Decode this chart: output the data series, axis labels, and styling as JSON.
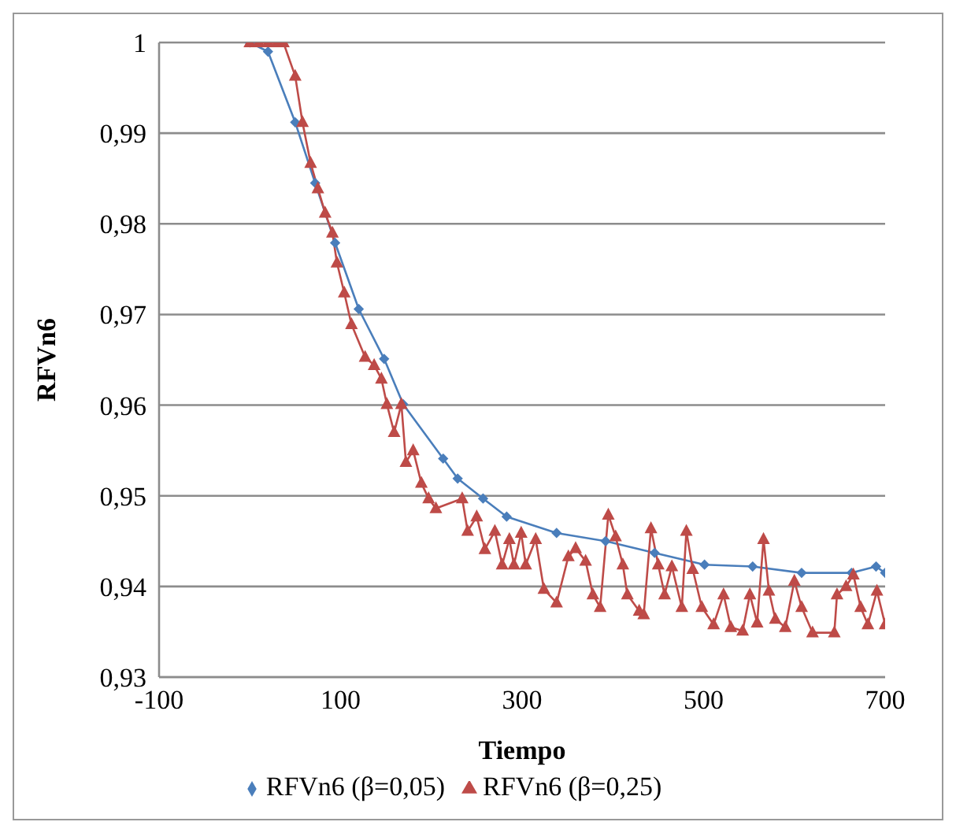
{
  "chart_data": {
    "type": "line",
    "xlabel": "Tiempo",
    "ylabel": "RFVn6",
    "xlim": [
      -100,
      700
    ],
    "xticks": [
      -100,
      100,
      300,
      500,
      700
    ],
    "ylim": [
      0.93,
      1
    ],
    "yticks": [
      {
        "value": 0.93,
        "label": "0,93"
      },
      {
        "value": 0.94,
        "label": "0,94"
      },
      {
        "value": 0.95,
        "label": "0,95"
      },
      {
        "value": 0.96,
        "label": "0,96"
      },
      {
        "value": 0.97,
        "label": "0,97"
      },
      {
        "value": 0.98,
        "label": "0,98"
      },
      {
        "value": 0.99,
        "label": "0,99"
      },
      {
        "value": 1,
        "label": "1"
      }
    ],
    "grid": "y",
    "legend": "bottom",
    "line_style": "solid",
    "series": [
      {
        "name": "RFVn6 (β=0,05)",
        "color": "#4a7ebb",
        "marker": "diamond",
        "x": [
          0,
          20,
          50,
          72,
          94,
          120,
          148,
          169,
          213,
          229,
          257,
          283,
          338,
          392,
          446,
          501,
          554,
          608,
          663,
          690,
          700
        ],
        "values": [
          1,
          0.999,
          0.9912,
          0.9845,
          0.9779,
          0.9706,
          0.9651,
          0.9601,
          0.9541,
          0.9519,
          0.9497,
          0.9477,
          0.9459,
          0.945,
          0.9437,
          0.9424,
          0.9422,
          0.9415,
          0.9415,
          0.9422,
          0.9415
        ]
      },
      {
        "name": "RFVn6 (β=0,25)",
        "color": "#be4b48",
        "marker": "triangle",
        "x": [
          0,
          10,
          20,
          30,
          37,
          50,
          58,
          67,
          75,
          83,
          91,
          96,
          104,
          112,
          127,
          137,
          145,
          151,
          159,
          167,
          172,
          180,
          189,
          197,
          205,
          234,
          240,
          250,
          259,
          270,
          278,
          286,
          291,
          299,
          304,
          315,
          324,
          338,
          351,
          359,
          370,
          378,
          386,
          395,
          403,
          411,
          416,
          429,
          434,
          442,
          450,
          457,
          465,
          476,
          481,
          488,
          498,
          511,
          522,
          530,
          543,
          551,
          559,
          566,
          572,
          579,
          590,
          600,
          608,
          620,
          644,
          647,
          657,
          665,
          673,
          681,
          691,
          700
        ],
        "values": [
          1,
          1,
          1,
          1,
          1,
          0.9963,
          0.9912,
          0.9867,
          0.9839,
          0.9812,
          0.979,
          0.9757,
          0.9724,
          0.9689,
          0.9653,
          0.9644,
          0.9629,
          0.9601,
          0.957,
          0.9601,
          0.9537,
          0.955,
          0.9514,
          0.9497,
          0.9486,
          0.9497,
          0.9461,
          0.9477,
          0.9441,
          0.9461,
          0.9424,
          0.9452,
          0.9424,
          0.9459,
          0.9424,
          0.9452,
          0.9397,
          0.9382,
          0.9433,
          0.9442,
          0.9428,
          0.9391,
          0.9377,
          0.9479,
          0.9455,
          0.9424,
          0.9391,
          0.9373,
          0.9369,
          0.9464,
          0.9424,
          0.9391,
          0.9422,
          0.9377,
          0.9461,
          0.9419,
          0.9377,
          0.9358,
          0.9391,
          0.9355,
          0.9351,
          0.9391,
          0.936,
          0.9452,
          0.9395,
          0.9364,
          0.9355,
          0.9406,
          0.9377,
          0.9349,
          0.9349,
          0.9391,
          0.94,
          0.9413,
          0.9377,
          0.9358,
          0.9395,
          0.9358
        ]
      }
    ]
  }
}
